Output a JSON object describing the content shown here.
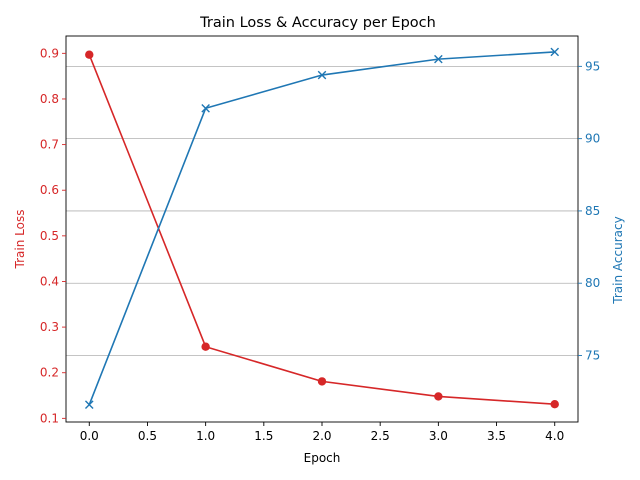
{
  "chart_data": {
    "type": "line",
    "title": "Train Loss & Accuracy per Epoch",
    "xlabel": "Epoch",
    "x": [
      0,
      1,
      2,
      3,
      4
    ],
    "xlim": [
      -0.2,
      4.2
    ],
    "xticks": [
      "0.0",
      "0.5",
      "1.0",
      "1.5",
      "2.0",
      "2.5",
      "3.0",
      "3.5",
      "4.0"
    ],
    "left_axis": {
      "label": "Train Loss",
      "color": "#d62728",
      "ylim": [
        0.092,
        0.938
      ],
      "ticks": [
        "0.1",
        "0.2",
        "0.3",
        "0.4",
        "0.5",
        "0.6",
        "0.7",
        "0.8",
        "0.9"
      ]
    },
    "right_axis": {
      "label": "Train Accuracy",
      "color": "#1f77b4",
      "ylim": [
        70.4,
        97.1
      ],
      "ticks": [
        "75",
        "80",
        "85",
        "90",
        "95"
      ],
      "grid": true
    },
    "series": [
      {
        "axis": "left",
        "marker": "circle",
        "color": "#d62728",
        "values": [
          0.897,
          0.257,
          0.181,
          0.148,
          0.131
        ]
      },
      {
        "axis": "right",
        "marker": "x",
        "color": "#1f77b4",
        "values": [
          71.6,
          92.1,
          94.4,
          95.5,
          96.0
        ]
      }
    ]
  }
}
